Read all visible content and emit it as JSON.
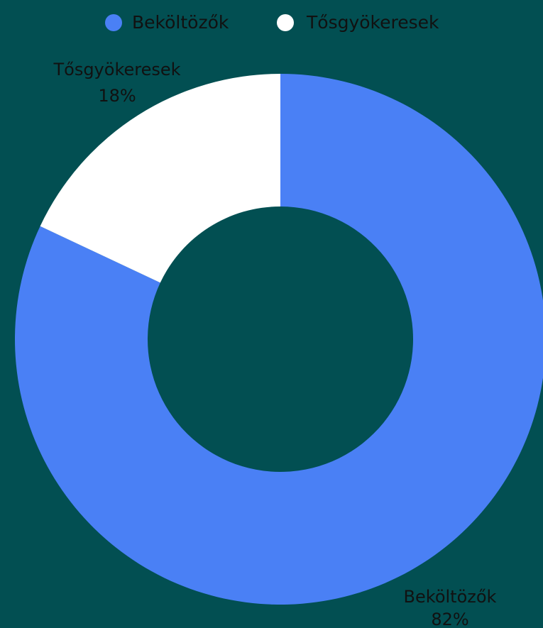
{
  "background_color": "#024f52",
  "chart_data": {
    "type": "pie",
    "variant": "donut",
    "legend_position": "top",
    "slices": [
      {
        "name": "Beköltözők",
        "value": 82,
        "label": "82%",
        "color": "#4a80f5"
      },
      {
        "name": "Tősgyökeresek",
        "value": 18,
        "label": "18%",
        "color": "#ffffff"
      }
    ]
  }
}
